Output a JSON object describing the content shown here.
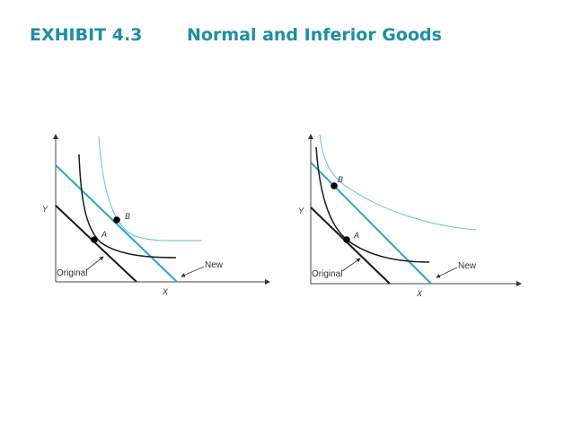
{
  "title": {
    "exhibit": "EXHIBIT 4.3",
    "text": "Normal and Inferior Goods"
  },
  "colors": {
    "title": "#1c8fa6",
    "new_budget_line": "#2aa6c8",
    "new_indifference_curve": "#5fc0d8",
    "original": "#1a1a1a"
  },
  "panels": [
    {
      "y_label": "Y",
      "x_label": "X",
      "point_a": "A",
      "point_b": "B",
      "original_label": "Original",
      "new_label": "New"
    },
    {
      "y_label": "Y",
      "x_label": "X",
      "point_a": "A",
      "point_b": "B",
      "original_label": "Original",
      "new_label": "New"
    }
  ]
}
